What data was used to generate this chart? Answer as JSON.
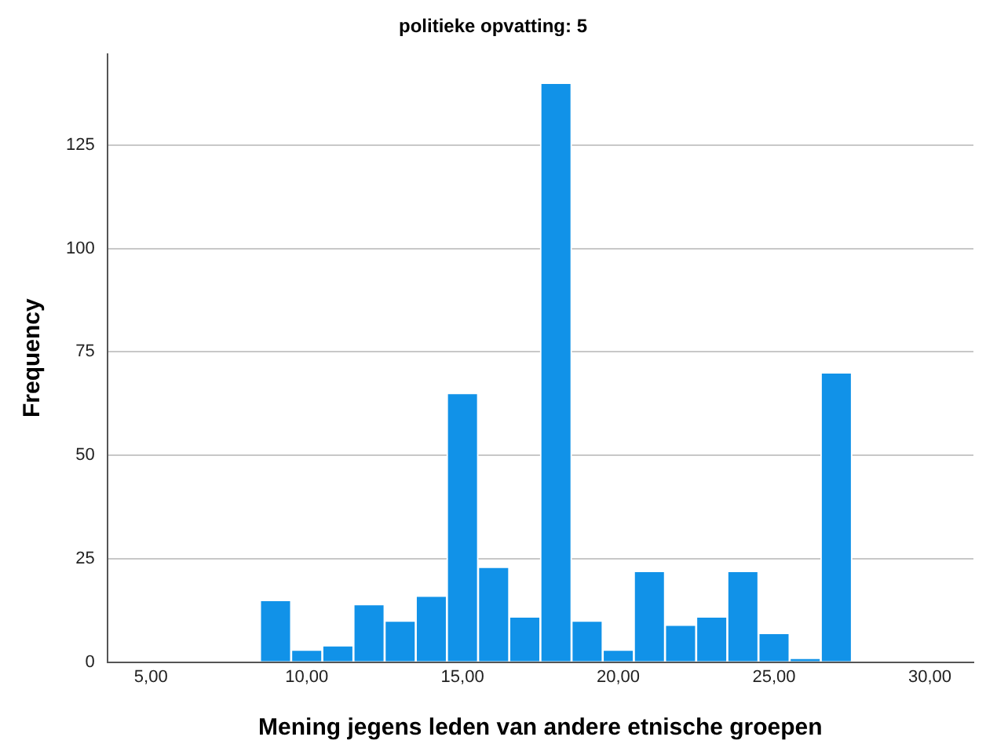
{
  "chart_data": {
    "type": "histogram",
    "title": "politieke opvatting: 5",
    "xlabel": "Mening jegens leden van andere etnische groepen",
    "ylabel": "Frequency",
    "bins": [
      8.5,
      9.5,
      10.5,
      11.5,
      12.5,
      13.5,
      14.5,
      15.5,
      16.5,
      17.5,
      18.5,
      19.5,
      20.5,
      21.5,
      22.5,
      23.5,
      24.5,
      25.5,
      26.5,
      27.5
    ],
    "values": [
      15,
      3,
      4,
      14,
      10,
      16,
      65,
      23,
      11,
      140,
      10,
      3,
      22,
      9,
      11,
      22,
      7,
      1,
      70
    ],
    "color": "#1192e8",
    "xlim": [
      3.6,
      31.4
    ],
    "xticks": [
      {
        "value": 5,
        "label": "5,00"
      },
      {
        "value": 10,
        "label": "10,00"
      },
      {
        "value": 15,
        "label": "15,00"
      },
      {
        "value": 20,
        "label": "20,00"
      },
      {
        "value": 25,
        "label": "25,00"
      },
      {
        "value": 30,
        "label": "30,00"
      }
    ],
    "ylim": [
      0,
      147
    ],
    "yticks": [
      0,
      25,
      50,
      75,
      100,
      125
    ],
    "grid": "y"
  }
}
